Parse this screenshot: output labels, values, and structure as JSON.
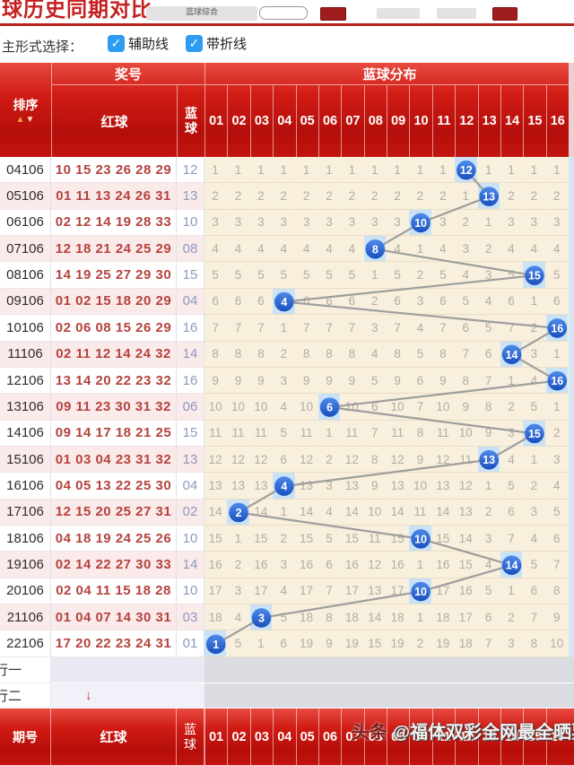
{
  "toolbar": {
    "title": "球历史同期对比",
    "dropdown_label": "蓝球综合"
  },
  "filter": {
    "label": "主形式选择：",
    "checkboxes": [
      {
        "label": "辅助线",
        "checked": true
      },
      {
        "label": "带折线",
        "checked": true
      }
    ]
  },
  "icons": {
    "check": "✓",
    "sort_up": "▲",
    "sort_down": "▼",
    "extra_arrow": "↓"
  },
  "table": {
    "headers": {
      "sort": "排序",
      "prize_group": "奖号",
      "dist_group": "蓝球分布",
      "red": "红球",
      "blue": "蓝球"
    },
    "ball_columns": [
      "01",
      "02",
      "03",
      "04",
      "05",
      "06",
      "07",
      "08",
      "09",
      "10",
      "11",
      "12",
      "13",
      "14",
      "15",
      "16"
    ],
    "rows": [
      {
        "period": "04106",
        "red": "10 15 23 26 28 29",
        "blue": "12",
        "hit": 12,
        "cells": [
          1,
          1,
          1,
          1,
          1,
          1,
          1,
          1,
          1,
          1,
          1,
          "12",
          1,
          1,
          1,
          1
        ]
      },
      {
        "period": "05106",
        "red": "01 11 13 24 26 31",
        "blue": "13",
        "hit": 13,
        "cells": [
          2,
          2,
          2,
          2,
          2,
          2,
          2,
          2,
          2,
          2,
          2,
          1,
          "13",
          2,
          2,
          2
        ]
      },
      {
        "period": "06106",
        "red": "02 12 14 19 28 33",
        "blue": "10",
        "hit": 10,
        "cells": [
          3,
          3,
          3,
          3,
          3,
          3,
          3,
          3,
          3,
          "10",
          3,
          2,
          1,
          3,
          3,
          3
        ]
      },
      {
        "period": "07106",
        "red": "12 18 21 24 25 29",
        "blue": "08",
        "hit": 8,
        "cells": [
          4,
          4,
          4,
          4,
          4,
          4,
          4,
          "8",
          4,
          1,
          4,
          3,
          2,
          4,
          4,
          4
        ]
      },
      {
        "period": "08106",
        "red": "14 19 25 27 29 30",
        "blue": "15",
        "hit": 15,
        "cells": [
          5,
          5,
          5,
          5,
          5,
          5,
          5,
          1,
          5,
          2,
          5,
          4,
          3,
          5,
          "15",
          5
        ]
      },
      {
        "period": "09106",
        "red": "01 02 15 18 20 29",
        "blue": "04",
        "hit": 4,
        "cells": [
          6,
          6,
          6,
          "4",
          6,
          6,
          6,
          2,
          6,
          3,
          6,
          5,
          4,
          6,
          1,
          6
        ]
      },
      {
        "period": "10106",
        "red": "02 06 08 15 26 29",
        "blue": "16",
        "hit": 16,
        "cells": [
          7,
          7,
          7,
          1,
          7,
          7,
          7,
          3,
          7,
          4,
          7,
          6,
          5,
          7,
          2,
          "16"
        ]
      },
      {
        "period": "11106",
        "red": "02 11 12 14 24 32",
        "blue": "14",
        "hit": 14,
        "cells": [
          8,
          8,
          8,
          2,
          8,
          8,
          8,
          4,
          8,
          5,
          8,
          7,
          6,
          "14",
          3,
          1
        ]
      },
      {
        "period": "12106",
        "red": "13 14 20 22 23 32",
        "blue": "16",
        "hit": 16,
        "cells": [
          9,
          9,
          9,
          3,
          9,
          9,
          9,
          5,
          9,
          6,
          9,
          8,
          7,
          1,
          4,
          "16"
        ]
      },
      {
        "period": "13106",
        "red": "09 11 23 30 31 32",
        "blue": "06",
        "hit": 6,
        "cells": [
          10,
          10,
          10,
          4,
          10,
          "6",
          10,
          6,
          10,
          7,
          10,
          9,
          8,
          2,
          5,
          1
        ]
      },
      {
        "period": "14106",
        "red": "09 14 17 18 21 25",
        "blue": "15",
        "hit": 15,
        "cells": [
          11,
          11,
          11,
          5,
          11,
          1,
          11,
          7,
          11,
          8,
          11,
          10,
          9,
          3,
          "15",
          2
        ]
      },
      {
        "period": "15106",
        "red": "01 03 04 23 31 32",
        "blue": "13",
        "hit": 13,
        "cells": [
          12,
          12,
          12,
          6,
          12,
          2,
          12,
          8,
          12,
          9,
          12,
          11,
          "13",
          4,
          1,
          3
        ]
      },
      {
        "period": "16106",
        "red": "04 05 13 22 25 30",
        "blue": "04",
        "hit": 4,
        "cells": [
          13,
          13,
          13,
          "4",
          13,
          3,
          13,
          9,
          13,
          10,
          13,
          12,
          1,
          5,
          2,
          4
        ]
      },
      {
        "period": "17106",
        "red": "12 15 20 25 27 31",
        "blue": "02",
        "hit": 2,
        "cells": [
          14,
          "2",
          14,
          1,
          14,
          4,
          14,
          10,
          14,
          11,
          14,
          13,
          2,
          6,
          3,
          5
        ]
      },
      {
        "period": "18106",
        "red": "04 18 19 24 25 26",
        "blue": "10",
        "hit": 10,
        "cells": [
          15,
          1,
          15,
          2,
          15,
          5,
          15,
          11,
          15,
          "10",
          15,
          14,
          3,
          7,
          4,
          6
        ]
      },
      {
        "period": "19106",
        "red": "02 14 22 27 30 33",
        "blue": "14",
        "hit": 14,
        "cells": [
          16,
          2,
          16,
          3,
          16,
          6,
          16,
          12,
          16,
          1,
          16,
          15,
          4,
          "14",
          5,
          7
        ]
      },
      {
        "period": "20106",
        "red": "02 04 11 15 18 28",
        "blue": "10",
        "hit": 10,
        "cells": [
          17,
          3,
          17,
          4,
          17,
          7,
          17,
          13,
          17,
          "10",
          17,
          16,
          5,
          1,
          6,
          8
        ]
      },
      {
        "period": "21106",
        "red": "01 04 07 14 30 31",
        "blue": "03",
        "hit": 3,
        "cells": [
          18,
          4,
          "3",
          5,
          18,
          8,
          18,
          14,
          18,
          1,
          18,
          17,
          6,
          2,
          7,
          9
        ]
      },
      {
        "period": "22106",
        "red": "17 20 22 23 24 31",
        "blue": "01",
        "hit": 1,
        "cells": [
          "1",
          5,
          1,
          6,
          19,
          9,
          19,
          15,
          19,
          2,
          19,
          18,
          7,
          3,
          8,
          10
        ]
      }
    ]
  },
  "extra": {
    "rows": [
      {
        "label": "行一"
      },
      {
        "label": "行二"
      }
    ]
  },
  "footer": {
    "period": "期号",
    "red": "红球",
    "blue": "蓝球",
    "ball_columns": [
      "01",
      "02",
      "03",
      "04",
      "05",
      "06",
      "07",
      "08",
      "09",
      "10",
      "11",
      "12",
      "13",
      "14",
      "15",
      "16"
    ]
  },
  "watermark": {
    "brand": "头条",
    "text": "@福体双彩全网最全晒票"
  },
  "colors": {
    "header_red": "#c2140f",
    "accent_blue": "#2d9cf0",
    "circle_blue": "#1f5ac6",
    "hit_cell": "#c9e2f6",
    "dist_bg": "#f8efdc",
    "row_alt_pink": "#fbeaea",
    "miss_text": "#b1aea6",
    "red_ball_text": "#b4433e",
    "blue_ball_text": "#8a9abf",
    "trend_line": "#9e9e9e"
  }
}
